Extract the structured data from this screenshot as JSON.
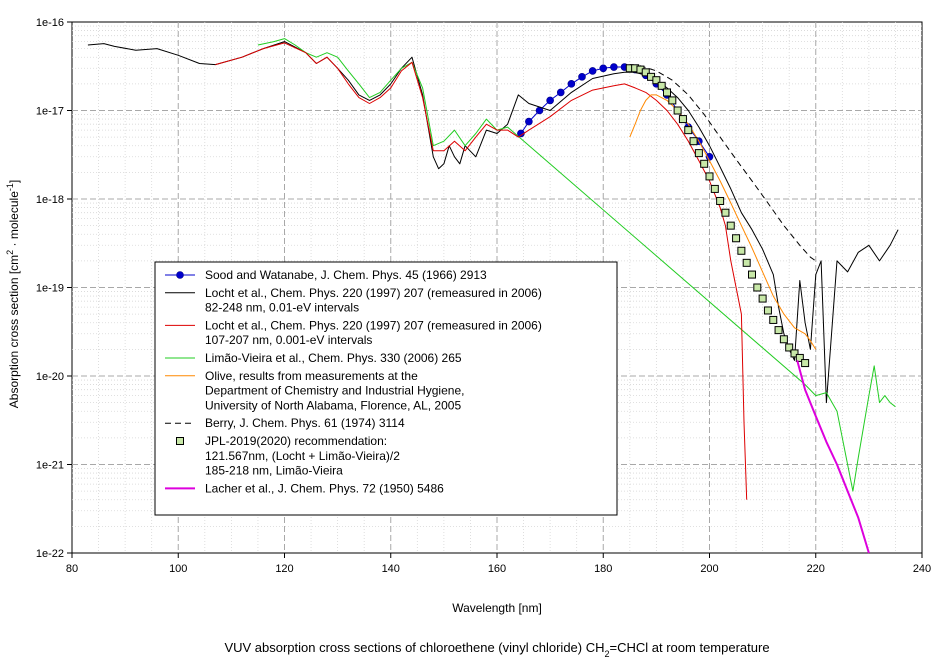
{
  "chart_data": {
    "type": "line",
    "caption": "VUV absorption cross sections of chloroethene (vinyl chloride) CH2=CHCl at room temperature",
    "caption_parts": [
      "VUV absorption cross sections of chloroethene (vinyl chloride) CH",
      "2",
      "=CHCl at room temperature"
    ],
    "xlabel": "Wavelength [nm]",
    "ylabel_parts": [
      "Absorption cross section [cm",
      "2",
      " · molecule",
      "-1",
      "]"
    ],
    "xlim": [
      80,
      240
    ],
    "ylim": [
      1e-22,
      1e-16
    ],
    "yscale": "log",
    "grid": true,
    "x_ticks": [
      "80",
      "100",
      "120",
      "140",
      "160",
      "180",
      "200",
      "220",
      "240"
    ],
    "y_ticks": [
      "1e-22",
      "1e-21",
      "1e-20",
      "1e-19",
      "1e-18",
      "1e-17",
      "1e-16"
    ],
    "legend_position": "lower-left",
    "series": [
      {
        "name": "Sood and Watanabe, J. Chem. Phys. 45 (1966) 2913",
        "name_lines": [
          "Sood and Watanabe, J. Chem. Phys. 45 (1966) 2913"
        ],
        "color": "#0000cc",
        "style": "line-dot",
        "x": [
          164.5,
          166,
          168,
          170,
          172,
          174,
          176,
          178,
          180,
          182,
          184,
          186,
          188,
          190,
          192,
          194,
          196,
          198,
          200
        ],
        "y": [
          5.5e-18,
          7.5e-18,
          1e-17,
          1.3e-17,
          1.6e-17,
          2e-17,
          2.4e-17,
          2.8e-17,
          3e-17,
          3.1e-17,
          3.1e-17,
          2.9e-17,
          2.5e-17,
          2e-17,
          1.5e-17,
          1e-17,
          6.5e-18,
          4.5e-18,
          3e-18
        ]
      },
      {
        "name": "Locht et al., Chem. Phys. 220 (1997) 207 (remeasured in 2006) 82-248 nm, 0.01-eV intervals",
        "name_lines": [
          "Locht et al., Chem. Phys. 220 (1997) 207 (remeasured in 2006)",
          "82-248 nm, 0.01-eV intervals"
        ],
        "color": "#000000",
        "style": "line",
        "x": [
          83,
          86,
          88,
          92,
          96,
          100,
          104,
          107,
          112,
          116,
          120,
          124,
          126,
          128,
          130,
          132,
          134,
          136,
          138,
          140,
          142,
          144,
          146,
          148,
          149,
          150,
          151,
          152,
          153,
          154,
          156,
          158,
          160,
          162,
          164,
          166,
          170,
          174,
          178,
          182,
          184,
          186,
          188,
          190,
          192,
          194,
          196,
          198,
          200,
          202,
          204,
          206,
          208,
          210,
          212,
          213,
          214,
          215,
          216,
          217,
          218,
          219,
          220,
          221,
          222,
          224,
          226,
          228,
          230,
          232,
          234,
          235.5
        ],
        "y": [
          5.5e-17,
          5.7e-17,
          5.3e-17,
          4.8e-17,
          5e-17,
          4.2e-17,
          3.4e-17,
          3.3e-17,
          4e-17,
          5e-17,
          6e-17,
          4.5e-17,
          3.4e-17,
          4e-17,
          3e-17,
          2.2e-17,
          1.5e-17,
          1.3e-17,
          1.5e-17,
          2e-17,
          3e-17,
          4e-17,
          1.5e-17,
          3e-18,
          2.2e-18,
          2.5e-18,
          4e-18,
          3e-18,
          2.5e-18,
          4e-18,
          3e-18,
          6e-18,
          5.5e-18,
          7e-18,
          1.5e-17,
          1.2e-17,
          1e-17,
          1.6e-17,
          2.3e-17,
          2.6e-17,
          2.7e-17,
          2.7e-17,
          2.5e-17,
          2.2e-17,
          1.8e-17,
          1.4e-17,
          1e-17,
          6.5e-18,
          4e-18,
          2.3e-18,
          1.3e-18,
          7e-19,
          4.5e-19,
          2.7e-19,
          1.4e-19,
          6e-20,
          3e-20,
          2e-20,
          1.5e-20,
          1.2e-19,
          4e-20,
          2e-20,
          1.4e-19,
          2e-19,
          5e-21,
          2e-19,
          1.5e-19,
          2.5e-19,
          3e-19,
          2e-19,
          3e-19,
          4.5e-19
        ]
      },
      {
        "name": "Locht et al., Chem. Phys. 220 (1997) 207 (remeasured in 2006) 107-207 nm, 0.001-eV intervals",
        "name_lines": [
          "Locht et al., Chem. Phys. 220 (1997) 207 (remeasured in 2006)",
          "107-207 nm, 0.001-eV intervals"
        ],
        "color": "#dd0000",
        "style": "line",
        "x": [
          107,
          112,
          116,
          120,
          124,
          126,
          128,
          130,
          132,
          134,
          136,
          138,
          140,
          142,
          144,
          146,
          148,
          150,
          152,
          154,
          156,
          158,
          160,
          162,
          164,
          166,
          170,
          174,
          178,
          182,
          184,
          186,
          188,
          190,
          192,
          194,
          196,
          198,
          200,
          202,
          203,
          204,
          205,
          206,
          206.5,
          207
        ],
        "y": [
          3.3e-17,
          4e-17,
          5e-17,
          5.8e-17,
          4.5e-17,
          3.4e-17,
          4e-17,
          3e-17,
          2e-17,
          1.4e-17,
          1.2e-17,
          1.4e-17,
          1.8e-17,
          2.8e-17,
          3.5e-17,
          1.4e-17,
          3.5e-18,
          3.5e-18,
          4.5e-18,
          3.5e-18,
          5e-18,
          7e-18,
          6e-18,
          6e-18,
          5e-18,
          6e-18,
          8.5e-18,
          1.3e-17,
          1.7e-17,
          1.9e-17,
          2e-17,
          1.8e-17,
          1.6e-17,
          1.3e-17,
          1e-17,
          7e-18,
          4.5e-18,
          2.7e-18,
          1.6e-18,
          8e-19,
          5e-19,
          2e-19,
          1e-19,
          5e-20,
          3e-21,
          4e-22
        ]
      },
      {
        "name": "Limão-Vieira et al., Chem. Phys. 330 (2006) 265",
        "name_lines": [
          "Limão-Vieira et al., Chem. Phys. 330 (2006) 265"
        ],
        "color": "#22cc22",
        "style": "line",
        "x": [
          115,
          118,
          120,
          122,
          124,
          126,
          128,
          130,
          132,
          134,
          136,
          138,
          140,
          142,
          144,
          146,
          148,
          150,
          152,
          154,
          156,
          158,
          160,
          162,
          218,
          220,
          222,
          224,
          226,
          227,
          228,
          230,
          231,
          232,
          233,
          234,
          235
        ],
        "y": [
          5.5e-17,
          6e-17,
          6.5e-17,
          5.5e-17,
          4.5e-17,
          4e-17,
          4.5e-17,
          4e-17,
          2.8e-17,
          2e-17,
          1.4e-17,
          1.6e-17,
          2.2e-17,
          3e-17,
          3.5e-17,
          1.8e-17,
          4e-18,
          4.5e-18,
          6e-18,
          4e-18,
          5.5e-18,
          8e-18,
          6e-18,
          6.5e-18,
          8e-21,
          6e-21,
          6.5e-21,
          4e-21,
          1e-21,
          5e-22,
          1.2e-21,
          6e-21,
          1.3e-20,
          5e-21,
          6e-21,
          5e-21,
          4.5e-21
        ]
      },
      {
        "name": "Olive, results from measurements at the Department of Chemistry and Industrial Hygiene, University of North Alabama, Florence, AL, 2005",
        "name_lines": [
          "Olive, results from measurements at the",
          "Department of Chemistry and Industrial Hygiene,",
          "University of North Alabama, Florence, AL, 2005"
        ],
        "color": "#ff8800",
        "style": "line",
        "x": [
          185,
          186,
          187,
          188,
          189,
          190,
          192,
          194,
          196,
          198,
          200,
          202,
          204,
          206,
          208,
          210,
          212,
          214,
          216,
          218,
          219,
          220
        ],
        "y": [
          5e-18,
          7e-18,
          1e-17,
          1.3e-17,
          1.5e-17,
          1.5e-17,
          1.3e-17,
          1e-17,
          7e-18,
          4.5e-18,
          2.7e-18,
          1.6e-18,
          9e-19,
          5e-19,
          2.8e-19,
          1.5e-19,
          8e-20,
          5e-20,
          3.5e-20,
          3e-20,
          2.5e-20,
          2e-20
        ]
      },
      {
        "name": "Berry, J. Chem. Phys. 61 (1974) 3114",
        "name_lines": [
          "Berry, J. Chem. Phys. 61 (1974) 3114"
        ],
        "color": "#000000",
        "style": "dashed",
        "x": [
          185,
          187,
          190,
          193,
          196,
          199,
          202,
          205,
          208,
          211,
          214,
          217,
          219,
          220
        ],
        "y": [
          3.3e-17,
          3.2e-17,
          2.8e-17,
          2.2e-17,
          1.5e-17,
          9e-18,
          5e-18,
          2.8e-18,
          1.6e-18,
          9e-19,
          5e-19,
          3e-19,
          2.2e-19,
          2e-19
        ]
      },
      {
        "name": "JPL-2019(2020) recommendation: 121.567nm, (Locht + Limão-Vieira)/2 185-218 nm, Limão-Vieira",
        "name_lines": [
          "JPL-2019(2020) recommendation:",
          "121.567nm, (Locht + Limão-Vieira)/2",
          "185-218 nm, Limão-Vieira"
        ],
        "color": "#000000",
        "style": "square-markers",
        "x": [
          185,
          186,
          187,
          188,
          189,
          190,
          191,
          192,
          193,
          194,
          195,
          196,
          197,
          198,
          199,
          200,
          201,
          202,
          203,
          204,
          205,
          206,
          207,
          208,
          209,
          210,
          211,
          212,
          213,
          214,
          215,
          216,
          217,
          218
        ],
        "y": [
          3e-17,
          3e-17,
          2.9e-17,
          2.7e-17,
          2.4e-17,
          2.2e-17,
          1.9e-17,
          1.6e-17,
          1.3e-17,
          1e-17,
          8e-18,
          6e-18,
          4.5e-18,
          3.3e-18,
          2.5e-18,
          1.8e-18,
          1.3e-18,
          9.5e-19,
          7e-19,
          5e-19,
          3.6e-19,
          2.6e-19,
          1.9e-19,
          1.4e-19,
          1e-19,
          7.5e-20,
          5.5e-20,
          4.3e-20,
          3.3e-20,
          2.6e-20,
          2.1e-20,
          1.8e-20,
          1.6e-20,
          1.4e-20
        ]
      },
      {
        "name": "Lacher et al., J. Chem. Phys. 72 (1950) 5486",
        "name_lines": [
          "Lacher et al., J. Chem. Phys. 72 (1950) 5486"
        ],
        "color": "#dd00dd",
        "style": "thick-line",
        "x": [
          216.5,
          218,
          220,
          222,
          224,
          226,
          228,
          230
        ],
        "y": [
          1.5e-20,
          7e-21,
          3.5e-21,
          1.8e-21,
          1e-21,
          5e-22,
          2.5e-22,
          1e-22
        ]
      }
    ]
  }
}
